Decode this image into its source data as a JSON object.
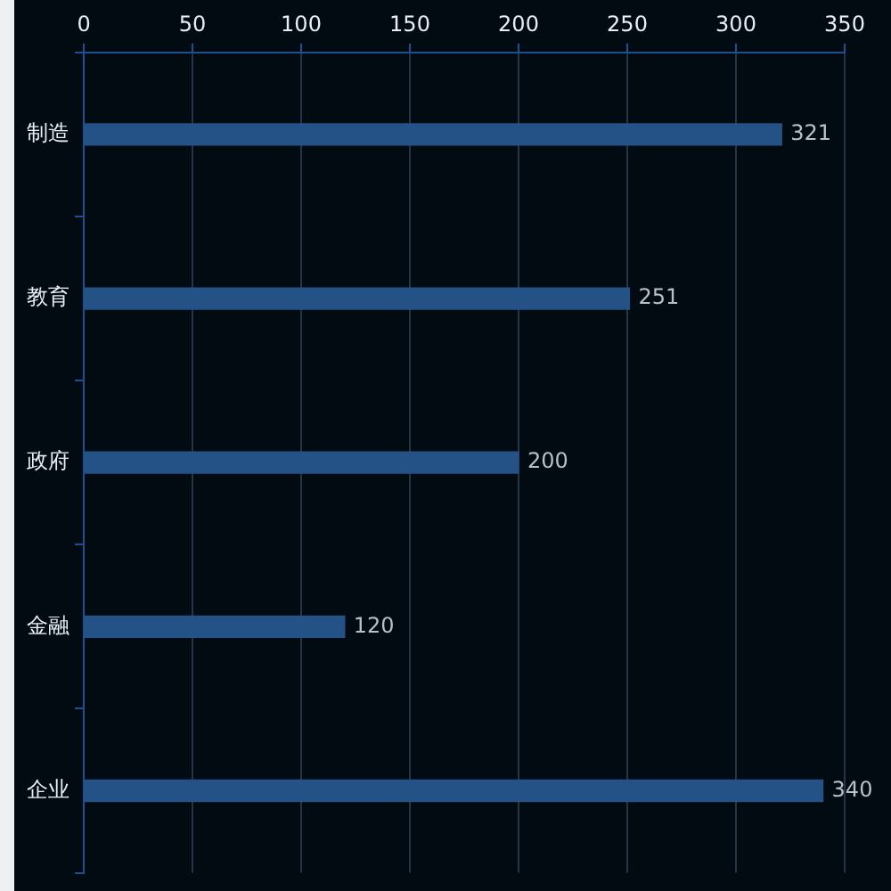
{
  "chart_data": {
    "type": "bar",
    "orientation": "horizontal",
    "categories": [
      "制造",
      "教育",
      "政府",
      "金融",
      "企业"
    ],
    "values": [
      321,
      251,
      200,
      120,
      340
    ],
    "color": "#245286",
    "xlim": [
      0,
      350
    ],
    "xticks": [
      0,
      50,
      100,
      150,
      200,
      250,
      300,
      350
    ],
    "grid": "x",
    "data_labels": true,
    "legend": false
  }
}
